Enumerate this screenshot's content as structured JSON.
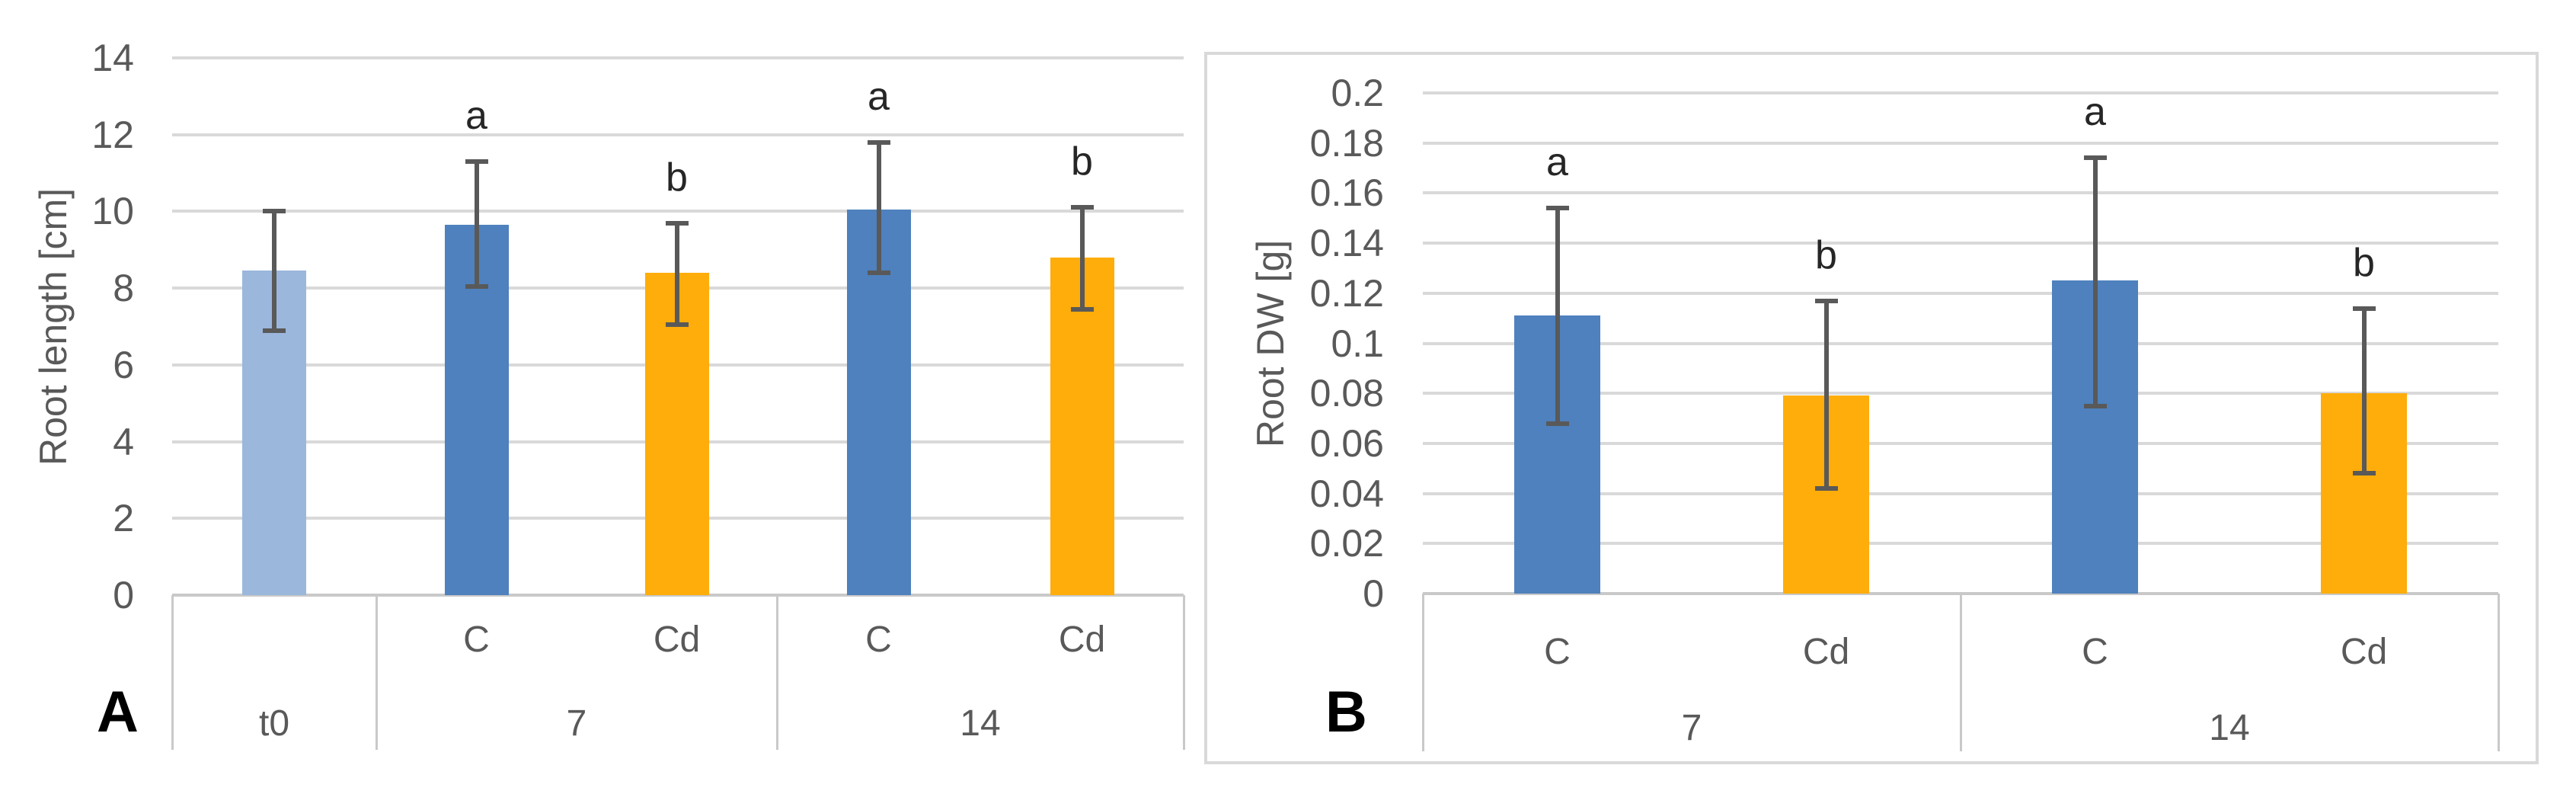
{
  "figure": {
    "description": "Two-panel bar chart with error bars and significance letters",
    "panel_a_label": "A",
    "panel_b_label": "B"
  },
  "colors": {
    "blue": "#4E81BD",
    "light_blue": "#9BB7DC",
    "orange": "#FFAD0A",
    "error_bar": "#595959",
    "gridline": "#D9D9D9",
    "axis_line": "#C9C9C9",
    "tick_text": "#595959",
    "sig_letter_text": "#262626",
    "panel_border": "#D9D9D9"
  },
  "chart_data": [
    {
      "type": "bar",
      "panel": "A",
      "panel_label": "A",
      "title": "",
      "xlabel": "",
      "ylabel": "Root length [cm]",
      "ylim": [
        0,
        14
      ],
      "ytick_step": 2,
      "ytick_labels": [
        "0",
        "2",
        "4",
        "6",
        "8",
        "10",
        "12",
        "14"
      ],
      "grid": true,
      "legend": "none",
      "groups": [
        {
          "label": "t0",
          "bars": [
            {
              "sublabel": "",
              "value": 8.45,
              "err_low": 6.9,
              "err_high": 10.0,
              "sig_letter": "",
              "color_key": "light_blue"
            }
          ]
        },
        {
          "label": "7",
          "bars": [
            {
              "sublabel": "C",
              "value": 9.65,
              "err_low": 8.05,
              "err_high": 11.3,
              "sig_letter": "a",
              "color_key": "blue"
            },
            {
              "sublabel": "Cd",
              "value": 8.4,
              "err_low": 7.05,
              "err_high": 9.7,
              "sig_letter": "b",
              "color_key": "orange"
            }
          ]
        },
        {
          "label": "14",
          "bars": [
            {
              "sublabel": "C",
              "value": 10.05,
              "err_low": 8.4,
              "err_high": 11.8,
              "sig_letter": "a",
              "color_key": "blue"
            },
            {
              "sublabel": "Cd",
              "value": 8.8,
              "err_low": 7.45,
              "err_high": 10.1,
              "sig_letter": "b",
              "color_key": "orange"
            }
          ]
        }
      ]
    },
    {
      "type": "bar",
      "panel": "B",
      "panel_label": "B",
      "title": "",
      "xlabel": "",
      "ylabel": "Root DW [g]",
      "ylim": [
        0,
        0.2
      ],
      "ytick_step": 0.02,
      "ytick_labels": [
        "0",
        "0.02",
        "0.04",
        "0.06",
        "0.08",
        "0.1",
        "0.12",
        "0.14",
        "0.16",
        "0.18",
        "0.2"
      ],
      "grid": true,
      "legend": "none",
      "groups": [
        {
          "label": "7",
          "bars": [
            {
              "sublabel": "C",
              "value": 0.111,
              "err_low": 0.068,
              "err_high": 0.154,
              "sig_letter": "a",
              "color_key": "blue"
            },
            {
              "sublabel": "Cd",
              "value": 0.079,
              "err_low": 0.042,
              "err_high": 0.117,
              "sig_letter": "b",
              "color_key": "orange"
            }
          ]
        },
        {
          "label": "14",
          "bars": [
            {
              "sublabel": "C",
              "value": 0.125,
              "err_low": 0.075,
              "err_high": 0.174,
              "sig_letter": "a",
              "color_key": "blue"
            },
            {
              "sublabel": "Cd",
              "value": 0.08,
              "err_low": 0.048,
              "err_high": 0.114,
              "sig_letter": "b",
              "color_key": "orange"
            }
          ]
        }
      ]
    }
  ]
}
